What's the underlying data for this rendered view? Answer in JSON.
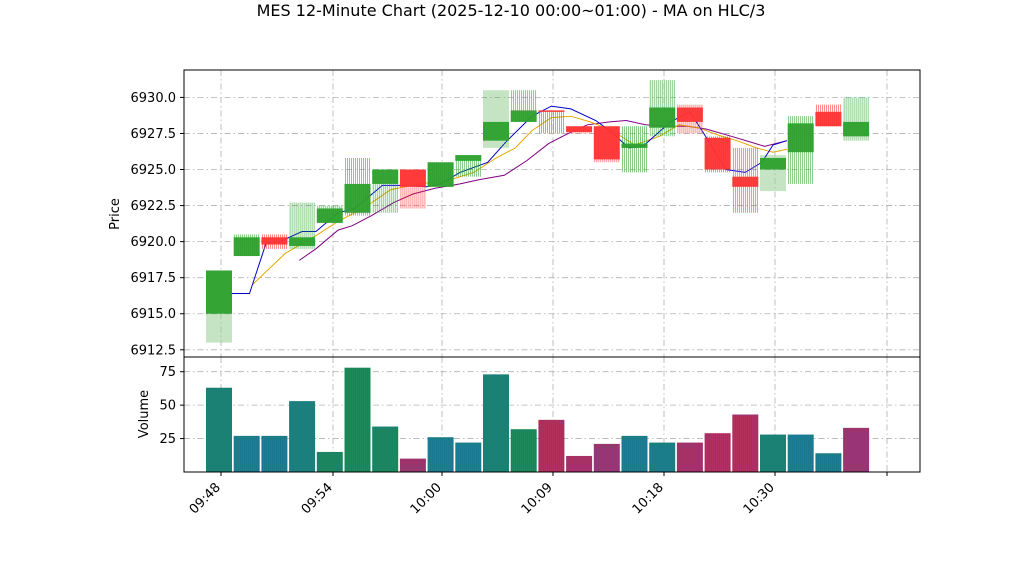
{
  "chart_data": [
    {
      "type": "candlestick",
      "title": "MES 12-Minute Chart (2025-12-10 00:00~01:00) - MA on HLC/3",
      "ylabel": "Price",
      "ylim": [
        6912.0,
        6931.9
      ],
      "yticks": [
        6912.5,
        6915.0,
        6917.5,
        6920.0,
        6922.5,
        6925.0,
        6927.5,
        6930.0
      ],
      "ytick_labels": [
        "6912.5",
        "6915.0",
        "6917.5",
        "6920.0",
        "6922.5",
        "6925.0",
        "6927.5",
        "6930.0"
      ],
      "grid": true,
      "colors": {
        "up": "#2ca02c",
        "down": "#ff3333",
        "ma_fast": "#0000cc",
        "ma_mid": "#e6a800",
        "ma_slow": "#800080"
      },
      "candles": [
        {
          "x": 0,
          "open": 6915.0,
          "high": 6918.0,
          "low": 6913.0,
          "close": 6918.0
        },
        {
          "x": 1,
          "open": 6919.0,
          "high": 6920.5,
          "low": 6919.0,
          "close": 6920.3
        },
        {
          "x": 2,
          "open": 6920.3,
          "high": 6920.5,
          "low": 6919.5,
          "close": 6919.8
        },
        {
          "x": 3,
          "open": 6919.7,
          "high": 6922.7,
          "low": 6919.5,
          "close": 6920.3
        },
        {
          "x": 4,
          "open": 6921.3,
          "high": 6922.5,
          "low": 6921.3,
          "close": 6922.3
        },
        {
          "x": 5,
          "open": 6922.0,
          "high": 6925.8,
          "low": 6921.8,
          "close": 6924.0
        },
        {
          "x": 6,
          "open": 6924.0,
          "high": 6925.0,
          "low": 6922.0,
          "close": 6925.0
        },
        {
          "x": 7,
          "open": 6925.0,
          "high": 6925.0,
          "low": 6922.3,
          "close": 6923.8
        },
        {
          "x": 8,
          "open": 6923.8,
          "high": 6925.5,
          "low": 6923.8,
          "close": 6925.5
        },
        {
          "x": 9,
          "open": 6925.6,
          "high": 6926.0,
          "low": 6924.5,
          "close": 6926.0
        },
        {
          "x": 10,
          "open": 6927.0,
          "high": 6930.5,
          "low": 6926.5,
          "close": 6928.3
        },
        {
          "x": 11,
          "open": 6928.3,
          "high": 6930.5,
          "low": 6928.3,
          "close": 6929.1
        },
        {
          "x": 12,
          "open": 6929.1,
          "high": 6929.1,
          "low": 6927.5,
          "close": 6929.0
        },
        {
          "x": 13,
          "open": 6928.0,
          "high": 6928.0,
          "low": 6927.5,
          "close": 6927.6
        },
        {
          "x": 14,
          "open": 6928.0,
          "high": 6928.0,
          "low": 6925.5,
          "close": 6925.7
        },
        {
          "x": 15,
          "open": 6926.5,
          "high": 6928.0,
          "low": 6924.8,
          "close": 6926.8
        },
        {
          "x": 16,
          "open": 6927.9,
          "high": 6931.2,
          "low": 6927.3,
          "close": 6929.3
        },
        {
          "x": 17,
          "open": 6929.3,
          "high": 6929.5,
          "low": 6927.5,
          "close": 6928.3
        },
        {
          "x": 18,
          "open": 6927.2,
          "high": 6927.3,
          "low": 6924.8,
          "close": 6925.0
        },
        {
          "x": 19,
          "open": 6924.5,
          "high": 6926.5,
          "low": 6922.0,
          "close": 6923.8
        },
        {
          "x": 20,
          "open": 6925.0,
          "high": 6926.0,
          "low": 6923.5,
          "close": 6925.8
        },
        {
          "x": 21,
          "open": 6926.2,
          "high": 6928.7,
          "low": 6924.0,
          "close": 6928.2
        },
        {
          "x": 22,
          "open": 6929.0,
          "high": 6929.5,
          "low": 6928.0,
          "close": 6928.0
        },
        {
          "x": 23,
          "open": 6927.3,
          "high": 6930.0,
          "low": 6927.0,
          "close": 6928.3
        }
      ],
      "ma_fast": [
        [
          0.4,
          6916.4
        ],
        [
          1.1,
          6916.4
        ],
        [
          1.7,
          6919.9
        ],
        [
          2.2,
          6920.0
        ],
        [
          3.0,
          6920.7
        ],
        [
          3.5,
          6920.7
        ],
        [
          4.3,
          6922.0
        ],
        [
          4.9,
          6922.3
        ],
        [
          5.9,
          6923.9
        ],
        [
          6.5,
          6923.9
        ],
        [
          7.5,
          6923.8
        ],
        [
          8.0,
          6924.0
        ],
        [
          8.7,
          6924.8
        ],
        [
          9.7,
          6925.5
        ],
        [
          10.4,
          6927.0
        ],
        [
          11.3,
          6928.7
        ],
        [
          12.0,
          6929.4
        ],
        [
          12.7,
          6929.2
        ],
        [
          13.6,
          6928.4
        ],
        [
          14.1,
          6927.7
        ],
        [
          14.8,
          6926.5
        ],
        [
          15.3,
          6926.6
        ],
        [
          16.3,
          6928.3
        ],
        [
          17.0,
          6929.0
        ],
        [
          17.5,
          6927.5
        ],
        [
          18.3,
          6925.0
        ],
        [
          19.0,
          6924.8
        ],
        [
          19.6,
          6925.5
        ],
        [
          20.0,
          6926.7
        ],
        [
          20.5,
          6927.0
        ]
      ],
      "ma_mid": [
        [
          1.2,
          6917.0
        ],
        [
          2.4,
          6919.2
        ],
        [
          3.4,
          6920.3
        ],
        [
          4.3,
          6921.4
        ],
        [
          5.2,
          6922.3
        ],
        [
          6.2,
          6923.6
        ],
        [
          7.2,
          6924.0
        ],
        [
          8.2,
          6924.2
        ],
        [
          9.2,
          6924.8
        ],
        [
          10.0,
          6925.8
        ],
        [
          10.7,
          6926.5
        ],
        [
          11.3,
          6927.7
        ],
        [
          12.0,
          6928.6
        ],
        [
          12.7,
          6928.7
        ],
        [
          13.4,
          6928.3
        ],
        [
          14.2,
          6927.7
        ],
        [
          15.0,
          6926.7
        ],
        [
          15.9,
          6927.3
        ],
        [
          16.6,
          6928.1
        ],
        [
          17.3,
          6927.9
        ],
        [
          18.0,
          6927.4
        ],
        [
          18.7,
          6927.0
        ],
        [
          19.4,
          6926.5
        ],
        [
          20.0,
          6926.2
        ],
        [
          20.5,
          6926.4
        ]
      ],
      "ma_slow": [
        [
          2.9,
          6918.7
        ],
        [
          3.5,
          6919.5
        ],
        [
          4.3,
          6920.8
        ],
        [
          4.8,
          6921.1
        ],
        [
          5.5,
          6921.8
        ],
        [
          6.3,
          6922.7
        ],
        [
          7.0,
          6923.3
        ],
        [
          7.8,
          6923.7
        ],
        [
          8.7,
          6924.0
        ],
        [
          9.4,
          6924.3
        ],
        [
          10.3,
          6924.6
        ],
        [
          11.1,
          6925.6
        ],
        [
          11.9,
          6926.8
        ],
        [
          12.5,
          6927.4
        ],
        [
          13.3,
          6928.1
        ],
        [
          14.1,
          6928.3
        ],
        [
          14.7,
          6928.4
        ],
        [
          15.4,
          6928.1
        ],
        [
          16.1,
          6928.0
        ],
        [
          16.9,
          6928.0
        ],
        [
          17.6,
          6927.8
        ],
        [
          18.5,
          6927.3
        ],
        [
          19.2,
          6926.9
        ],
        [
          19.7,
          6926.6
        ],
        [
          20.5,
          6927.0
        ]
      ]
    },
    {
      "type": "bar",
      "ylabel": "Volume",
      "ylim": [
        0,
        86
      ],
      "yticks": [
        25,
        50,
        75
      ],
      "ytick_labels": [
        "25",
        "50",
        "75"
      ],
      "grid": true,
      "xtick_labels": [
        "09:48",
        "09:54",
        "10:00",
        "10:09",
        "10:18",
        "10:30"
      ],
      "colors": {
        "up_fill": "#1a8a5c",
        "down_fill": "#b03060",
        "up_stripe": "#2060d0",
        "down_stripe": "#6040a0"
      },
      "bars": [
        {
          "x": 0,
          "value": 63,
          "dir": "up"
        },
        {
          "x": 1,
          "value": 27,
          "dir": "up"
        },
        {
          "x": 2,
          "value": 27,
          "dir": "up"
        },
        {
          "x": 3,
          "value": 53,
          "dir": "up"
        },
        {
          "x": 4,
          "value": 15,
          "dir": "up"
        },
        {
          "x": 5,
          "value": 78,
          "dir": "up"
        },
        {
          "x": 6,
          "value": 34,
          "dir": "up"
        },
        {
          "x": 7,
          "value": 10,
          "dir": "down"
        },
        {
          "x": 8,
          "value": 26,
          "dir": "up"
        },
        {
          "x": 9,
          "value": 22,
          "dir": "up"
        },
        {
          "x": 10,
          "value": 73,
          "dir": "up"
        },
        {
          "x": 11,
          "value": 32,
          "dir": "up"
        },
        {
          "x": 12,
          "value": 39,
          "dir": "down"
        },
        {
          "x": 13,
          "value": 12,
          "dir": "down"
        },
        {
          "x": 14,
          "value": 21,
          "dir": "down"
        },
        {
          "x": 15,
          "value": 27,
          "dir": "up"
        },
        {
          "x": 16,
          "value": 22,
          "dir": "up"
        },
        {
          "x": 17,
          "value": 22,
          "dir": "down"
        },
        {
          "x": 18,
          "value": 29,
          "dir": "down"
        },
        {
          "x": 19,
          "value": 43,
          "dir": "down"
        },
        {
          "x": 20,
          "value": 28,
          "dir": "up"
        },
        {
          "x": 21,
          "value": 28,
          "dir": "up"
        },
        {
          "x": 22,
          "value": 14,
          "dir": "up"
        },
        {
          "x": 23,
          "value": 33,
          "dir": "down"
        }
      ]
    }
  ]
}
